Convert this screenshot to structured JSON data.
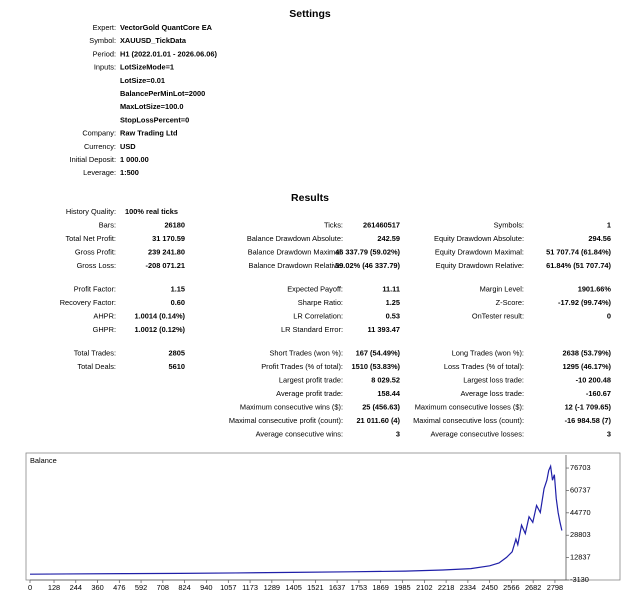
{
  "settings": {
    "title": "Settings",
    "rows": [
      {
        "label": "Expert:",
        "values": [
          "VectorGold QuantCore EA"
        ]
      },
      {
        "label": "Symbol:",
        "values": [
          "XAUUSD_TickData"
        ]
      },
      {
        "label": "Period:",
        "values": [
          "H1 (2022.01.01 - 2026.06.06)"
        ]
      },
      {
        "label": "Inputs:",
        "values": [
          "LotSizeMode=1",
          "LotSize=0.01",
          "BalancePerMinLot=2000",
          "MaxLotSize=100.0",
          "StopLossPercent=0"
        ]
      },
      {
        "label": "Company:",
        "values": [
          "Raw Trading Ltd"
        ]
      },
      {
        "label": "Currency:",
        "values": [
          "USD"
        ]
      },
      {
        "label": "Initial Deposit:",
        "values": [
          "1 000.00"
        ]
      },
      {
        "label": "Leverage:",
        "values": [
          "1:500"
        ]
      }
    ]
  },
  "results": {
    "title": "Results",
    "groups": [
      [
        [
          {
            "label": "History Quality:",
            "value": "100% real ticks"
          },
          null,
          null
        ],
        [
          {
            "label": "Bars:",
            "value": "26180"
          },
          {
            "label": "Ticks:",
            "value": "261460517"
          },
          {
            "label": "Symbols:",
            "value": "1"
          }
        ],
        [
          {
            "label": "Total Net Profit:",
            "value": "31 170.59"
          },
          {
            "label": "Balance Drawdown Absolute:",
            "value": "242.59"
          },
          {
            "label": "Equity Drawdown Absolute:",
            "value": "294.56"
          }
        ],
        [
          {
            "label": "Gross Profit:",
            "value": "239 241.80"
          },
          {
            "label": "Balance Drawdown Maximal:",
            "value": "46 337.79 (59.02%)"
          },
          {
            "label": "Equity Drawdown Maximal:",
            "value": "51 707.74 (61.84%)"
          }
        ],
        [
          {
            "label": "Gross Loss:",
            "value": "-208 071.21"
          },
          {
            "label": "Balance Drawdown Relative:",
            "value": "59.02% (46 337.79)"
          },
          {
            "label": "Equity Drawdown Relative:",
            "value": "61.84% (51 707.74)"
          }
        ]
      ],
      [
        [
          {
            "label": "Profit Factor:",
            "value": "1.15"
          },
          {
            "label": "Expected Payoff:",
            "value": "11.11"
          },
          {
            "label": "Margin Level:",
            "value": "1901.66%"
          }
        ],
        [
          {
            "label": "Recovery Factor:",
            "value": "0.60"
          },
          {
            "label": "Sharpe Ratio:",
            "value": "1.25"
          },
          {
            "label": "Z-Score:",
            "value": "-17.92 (99.74%)"
          }
        ],
        [
          {
            "label": "AHPR:",
            "value": "1.0014 (0.14%)"
          },
          {
            "label": "LR Correlation:",
            "value": "0.53"
          },
          {
            "label": "OnTester result:",
            "value": "0"
          }
        ],
        [
          {
            "label": "GHPR:",
            "value": "1.0012 (0.12%)"
          },
          {
            "label": "LR Standard Error:",
            "value": "11 393.47"
          },
          null
        ]
      ],
      [
        [
          {
            "label": "Total Trades:",
            "value": "2805"
          },
          {
            "label": "Short Trades (won %):",
            "value": "167 (54.49%)"
          },
          {
            "label": "Long Trades (won %):",
            "value": "2638 (53.79%)"
          }
        ],
        [
          {
            "label": "Total Deals:",
            "value": "5610"
          },
          {
            "label": "Profit Trades (% of total):",
            "value": "1510 (53.83%)"
          },
          {
            "label": "Loss Trades (% of total):",
            "value": "1295 (46.17%)"
          }
        ],
        [
          null,
          {
            "label": "Largest profit trade:",
            "value": "8 029.52"
          },
          {
            "label": "Largest loss trade:",
            "value": "-10 200.48"
          }
        ],
        [
          null,
          {
            "label": "Average profit trade:",
            "value": "158.44"
          },
          {
            "label": "Average loss trade:",
            "value": "-160.67"
          }
        ],
        [
          null,
          {
            "label": "Maximum consecutive wins ($):",
            "value": "25 (456.63)"
          },
          {
            "label": "Maximum consecutive losses ($):",
            "value": "12 (-1 709.65)"
          }
        ],
        [
          null,
          {
            "label": "Maximal consecutive profit (count):",
            "value": "21 011.60 (4)"
          },
          {
            "label": "Maximal consecutive loss (count):",
            "value": "-16 984.58 (7)"
          }
        ],
        [
          null,
          {
            "label": "Average consecutive wins:",
            "value": "3"
          },
          {
            "label": "Average consecutive losses:",
            "value": "3"
          }
        ]
      ]
    ]
  },
  "chart_data": {
    "type": "line",
    "title": "Balance",
    "color": "#1f1fa8",
    "x": [
      0,
      200,
      500,
      800,
      1100,
      1400,
      1700,
      2000,
      2200,
      2350,
      2450,
      2500,
      2540,
      2570,
      2590,
      2600,
      2620,
      2640,
      2660,
      2680,
      2700,
      2720,
      2740,
      2755,
      2765,
      2775,
      2785,
      2795,
      2805,
      2815,
      2825,
      2835
    ],
    "values": [
      1000,
      1200,
      1400,
      1600,
      1900,
      2300,
      2700,
      3200,
      4000,
      5000,
      7000,
      9000,
      13000,
      17000,
      26000,
      22000,
      36000,
      30000,
      42000,
      38000,
      50000,
      45000,
      62000,
      68000,
      75000,
      78000,
      68000,
      72000,
      55000,
      45000,
      38000,
      32171
    ],
    "xlim": [
      0,
      2857
    ],
    "ylim": [
      -3130,
      86000
    ],
    "xticks": [
      0,
      128,
      244,
      360,
      476,
      592,
      708,
      824,
      940,
      1057,
      1173,
      1289,
      1405,
      1521,
      1637,
      1753,
      1869,
      1985,
      2102,
      2218,
      2334,
      2450,
      2566,
      2682,
      2798
    ],
    "yticks": [
      -3130,
      12837,
      28803,
      44770,
      60737,
      76703
    ],
    "grid": false
  }
}
